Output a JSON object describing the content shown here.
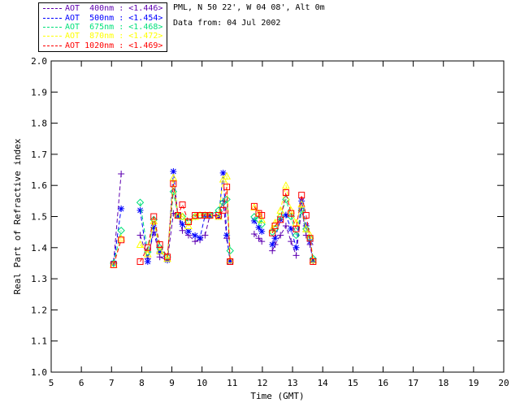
{
  "header": {
    "site_line": "PML, N 50 22', W 04 08', Alt 0m",
    "date_line": "Data from: 04 Jul 2002"
  },
  "chart_data": {
    "type": "line",
    "title": "",
    "xlabel": "Time (GMT)",
    "ylabel": "Real Part of Refractive index",
    "xlim": [
      5,
      20
    ],
    "ylim": [
      1.0,
      2.0
    ],
    "xticks": [
      5,
      6,
      7,
      8,
      9,
      10,
      11,
      12,
      13,
      14,
      15,
      16,
      17,
      18,
      19,
      20
    ],
    "ytick_labels": [
      "1.0",
      "1.1",
      "1.2",
      "1.3",
      "1.4",
      "1.5",
      "1.6",
      "1.7",
      "1.8",
      "1.9",
      "2.0"
    ],
    "yticks": [
      1.0,
      1.1,
      1.2,
      1.3,
      1.4,
      1.5,
      1.6,
      1.7,
      1.8,
      1.9,
      2.0
    ],
    "grid": false,
    "legend_position": "top-left-outside",
    "line_style": "dashed",
    "series": [
      {
        "name": "AOT 400nm",
        "mean": "1.446",
        "legend_label": "AOT  400nm : <1.446>",
        "color": "#5e00b0",
        "marker": "plus",
        "segments": [
          {
            "t": [
              7.07,
              7.32
            ],
            "v": [
              1.355,
              1.637
            ]
          },
          {
            "t": [
              7.95,
              8.2,
              8.4,
              8.6,
              8.85,
              9.05,
              9.2,
              9.35,
              9.55,
              9.77,
              9.93,
              10.1,
              10.26,
              10.55,
              10.7,
              10.82,
              10.93
            ],
            "v": [
              1.44,
              1.365,
              1.45,
              1.37,
              1.36,
              1.51,
              1.504,
              1.455,
              1.44,
              1.42,
              1.425,
              1.44,
              1.504,
              1.5,
              1.55,
              1.43,
              1.36
            ]
          },
          {
            "t": [
              11.73,
              11.88,
              11.98
            ],
            "v": [
              1.444,
              1.43,
              1.42
            ]
          },
          {
            "t": [
              12.33,
              12.42,
              12.6,
              12.78,
              12.95,
              13.12,
              13.3,
              13.45,
              13.58,
              13.68
            ],
            "v": [
              1.39,
              1.41,
              1.44,
              1.47,
              1.42,
              1.375,
              1.527,
              1.44,
              1.41,
              1.355
            ]
          }
        ]
      },
      {
        "name": "AOT 500nm",
        "mean": "1.454",
        "legend_label": "AOT  500nm : <1.454>",
        "color": "#0000ff",
        "marker": "asterisk",
        "segments": [
          {
            "t": [
              7.07,
              7.32
            ],
            "v": [
              1.35,
              1.525
            ]
          },
          {
            "t": [
              7.95,
              8.2,
              8.4,
              8.6,
              8.85,
              9.05,
              9.2,
              9.35,
              9.55,
              9.77,
              9.93,
              10.1,
              10.26,
              10.55,
              10.7,
              10.82,
              10.93
            ],
            "v": [
              1.52,
              1.355,
              1.465,
              1.386,
              1.36,
              1.645,
              1.504,
              1.475,
              1.452,
              1.439,
              1.431,
              1.504,
              1.504,
              1.5,
              1.64,
              1.44,
              1.355
            ]
          },
          {
            "t": [
              11.73,
              11.88,
              11.98
            ],
            "v": [
              1.486,
              1.465,
              1.452
            ]
          },
          {
            "t": [
              12.33,
              12.42,
              12.6,
              12.78,
              12.95,
              13.12,
              13.3,
              13.45,
              13.58,
              13.68
            ],
            "v": [
              1.41,
              1.43,
              1.49,
              1.505,
              1.46,
              1.4,
              1.55,
              1.47,
              1.42,
              1.36
            ]
          }
        ]
      },
      {
        "name": "AOT 675nm",
        "mean": "1.468",
        "legend_label": "AOT  675nm : <1.468>",
        "color": "#00e07a",
        "marker": "diamond",
        "segments": [
          {
            "t": [
              7.07,
              7.32
            ],
            "v": [
              1.35,
              1.455
            ]
          },
          {
            "t": [
              7.95,
              8.2,
              8.4,
              8.6,
              8.85,
              9.05,
              9.2,
              9.35,
              9.55,
              9.77,
              9.93,
              10.1,
              10.26,
              10.55,
              10.7,
              10.82,
              10.93
            ],
            "v": [
              1.545,
              1.386,
              1.49,
              1.4,
              1.37,
              1.58,
              1.504,
              1.5,
              1.483,
              1.5,
              1.504,
              1.504,
              1.504,
              1.52,
              1.545,
              1.555,
              1.39
            ]
          },
          {
            "t": [
              11.73,
              11.88,
              11.98
            ],
            "v": [
              1.499,
              1.49,
              1.475
            ]
          },
          {
            "t": [
              12.33,
              12.42,
              12.6,
              12.78,
              12.95,
              13.12,
              13.3,
              13.45,
              13.58,
              13.68
            ],
            "v": [
              1.45,
              1.46,
              1.5,
              1.555,
              1.5,
              1.44,
              1.52,
              1.46,
              1.43,
              1.365
            ]
          }
        ]
      },
      {
        "name": "AOT 870nm",
        "mean": "1.472",
        "legend_label": "AOT  870nm : <1.472>",
        "color": "#ffff00",
        "marker": "triangle",
        "segments": [
          {
            "t": [
              7.07,
              7.32
            ],
            "v": [
              1.345,
              1.43
            ]
          },
          {
            "t": [
              7.95,
              8.2,
              8.4,
              8.6,
              8.85,
              9.05,
              9.2,
              9.35,
              9.55,
              9.77,
              9.93,
              10.1,
              10.26,
              10.55,
              10.7,
              10.82,
              10.93
            ],
            "v": [
              1.41,
              1.38,
              1.486,
              1.39,
              1.365,
              1.625,
              1.504,
              1.5,
              1.47,
              1.5,
              1.504,
              1.504,
              1.504,
              1.5,
              1.62,
              1.63,
              1.36
            ]
          },
          {
            "t": [
              11.73,
              11.88,
              11.98
            ],
            "v": [
              1.53,
              1.51,
              1.49
            ]
          },
          {
            "t": [
              12.33,
              12.42,
              12.6,
              12.78,
              12.95,
              13.12,
              13.3,
              13.45,
              13.58,
              13.68
            ],
            "v": [
              1.46,
              1.48,
              1.52,
              1.6,
              1.52,
              1.48,
              1.54,
              1.46,
              1.44,
              1.36
            ]
          }
        ]
      },
      {
        "name": "AOT 1020nm",
        "mean": "1.469",
        "legend_label": "AOT 1020nm : <1.469>",
        "color": "#ff0000",
        "marker": "square",
        "segments": [
          {
            "t": [
              7.07,
              7.32
            ],
            "v": [
              1.345,
              1.425
            ]
          },
          {
            "t": [
              7.95,
              8.2,
              8.4,
              8.6,
              8.85,
              9.05,
              9.2,
              9.35,
              9.55,
              9.77,
              9.93,
              10.1,
              10.26,
              10.55,
              10.7,
              10.82,
              10.93
            ],
            "v": [
              1.355,
              1.4,
              1.5,
              1.41,
              1.37,
              1.605,
              1.504,
              1.538,
              1.483,
              1.504,
              1.504,
              1.504,
              1.504,
              1.504,
              1.52,
              1.595,
              1.355
            ]
          },
          {
            "t": [
              11.73,
              11.88,
              11.98
            ],
            "v": [
              1.533,
              1.51,
              1.504
            ]
          },
          {
            "t": [
              12.33,
              12.42,
              12.6,
              12.78,
              12.95,
              13.12,
              13.3,
              13.45,
              13.58,
              13.68
            ],
            "v": [
              1.447,
              1.47,
              1.49,
              1.577,
              1.51,
              1.46,
              1.569,
              1.504,
              1.43,
              1.355
            ]
          }
        ]
      }
    ]
  }
}
